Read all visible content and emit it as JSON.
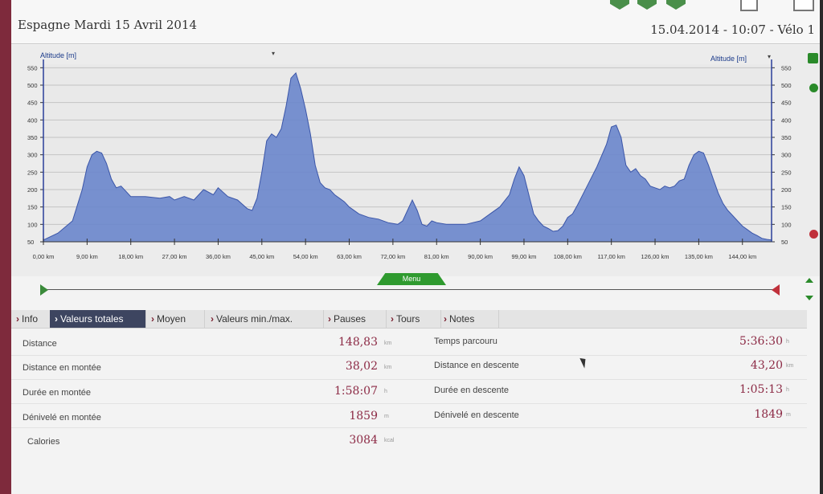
{
  "header": {
    "title": "Espagne Mardi 15 Avril 2014",
    "datetime": "15.04.2014 - 10:07 - Vélo 1"
  },
  "chart": {
    "left_axis_title": "Altitude [m]",
    "right_axis_title": "Altitude [m]"
  },
  "chart_data": {
    "type": "area",
    "xlabel": "",
    "ylabel": "Altitude [m]",
    "xlim": [
      0,
      150
    ],
    "ylim": [
      50,
      560
    ],
    "x_ticks": [
      "0,00 km",
      "9,00 km",
      "18,00 km",
      "27,00 km",
      "36,00 km",
      "45,00 km",
      "54,00 km",
      "63,00 km",
      "72,00 km",
      "81,00 km",
      "90,00 km",
      "99,00 km",
      "108,00 km",
      "117,00 km",
      "126,00 km",
      "135,00 km",
      "144,00 km"
    ],
    "y_ticks": [
      50,
      100,
      150,
      200,
      250,
      300,
      350,
      400,
      450,
      500,
      550
    ],
    "color": "#6a86cc",
    "series": [
      {
        "x": [
          0,
          3,
          6,
          8,
          9,
          10,
          11,
          12,
          13,
          14,
          15,
          16,
          17,
          18,
          21,
          24,
          26,
          27,
          29,
          31,
          33,
          35,
          36,
          38,
          40,
          42,
          43,
          44,
          45,
          46,
          47,
          48,
          49,
          50,
          51,
          52,
          53,
          54,
          55,
          56,
          57,
          58,
          59,
          60,
          61,
          62,
          63,
          65,
          67,
          69,
          71,
          73,
          74,
          75,
          76,
          77,
          78,
          79,
          80,
          81,
          83,
          85,
          87,
          90,
          92,
          94,
          96,
          97,
          98,
          99,
          100,
          101,
          102,
          103,
          104,
          105,
          106,
          107,
          108,
          109,
          110,
          112,
          114,
          116,
          117,
          118,
          119,
          120,
          121,
          122,
          123,
          124,
          125,
          126,
          127,
          128,
          129,
          130,
          131,
          132,
          133,
          134,
          135,
          136,
          137,
          138,
          139,
          140,
          141,
          142,
          143,
          144,
          145,
          146,
          147,
          148,
          149,
          150
        ],
        "y": [
          55,
          75,
          110,
          200,
          265,
          300,
          310,
          305,
          275,
          230,
          205,
          210,
          195,
          180,
          180,
          175,
          180,
          170,
          180,
          170,
          200,
          185,
          205,
          180,
          170,
          145,
          140,
          175,
          250,
          340,
          360,
          350,
          375,
          440,
          520,
          535,
          490,
          430,
          360,
          270,
          220,
          205,
          200,
          185,
          175,
          165,
          150,
          130,
          120,
          115,
          105,
          100,
          110,
          140,
          170,
          140,
          100,
          95,
          110,
          105,
          100,
          100,
          100,
          110,
          130,
          150,
          185,
          230,
          265,
          240,
          185,
          130,
          110,
          95,
          88,
          80,
          82,
          95,
          120,
          130,
          155,
          210,
          265,
          330,
          380,
          385,
          350,
          270,
          250,
          260,
          240,
          230,
          210,
          205,
          200,
          210,
          205,
          210,
          225,
          230,
          270,
          300,
          310,
          305,
          270,
          230,
          190,
          160,
          140,
          125,
          110,
          95,
          85,
          75,
          68,
          60,
          57,
          55
        ]
      }
    ]
  },
  "menu": {
    "label": "Menu"
  },
  "tabs": [
    {
      "label": "Info"
    },
    {
      "label": "Valeurs totales"
    },
    {
      "label": "Moyen"
    },
    {
      "label": "Valeurs min./max."
    },
    {
      "label": "Pauses"
    },
    {
      "label": "Tours"
    },
    {
      "label": "Notes"
    }
  ],
  "stats_left": [
    {
      "label": "Distance",
      "value": "148,83",
      "unit": "km"
    },
    {
      "label": "Distance en montée",
      "value": "38,02",
      "unit": "km"
    },
    {
      "label": "Durée en montée",
      "value": "1:58:07",
      "unit": "h"
    },
    {
      "label": "Dénivelé en montée",
      "value": "1859",
      "unit": "m"
    },
    {
      "label": "Calories",
      "value": "3084",
      "unit": "kcal"
    }
  ],
  "stats_right": [
    {
      "label": "Temps parcouru",
      "value": "5:36:30",
      "unit": "h"
    },
    {
      "label": "Distance en descente",
      "value": "43,20",
      "unit": "km"
    },
    {
      "label": "Durée en descente",
      "value": "1:05:13",
      "unit": "h"
    },
    {
      "label": "Dénivelé en descente",
      "value": "1849",
      "unit": "m"
    }
  ]
}
